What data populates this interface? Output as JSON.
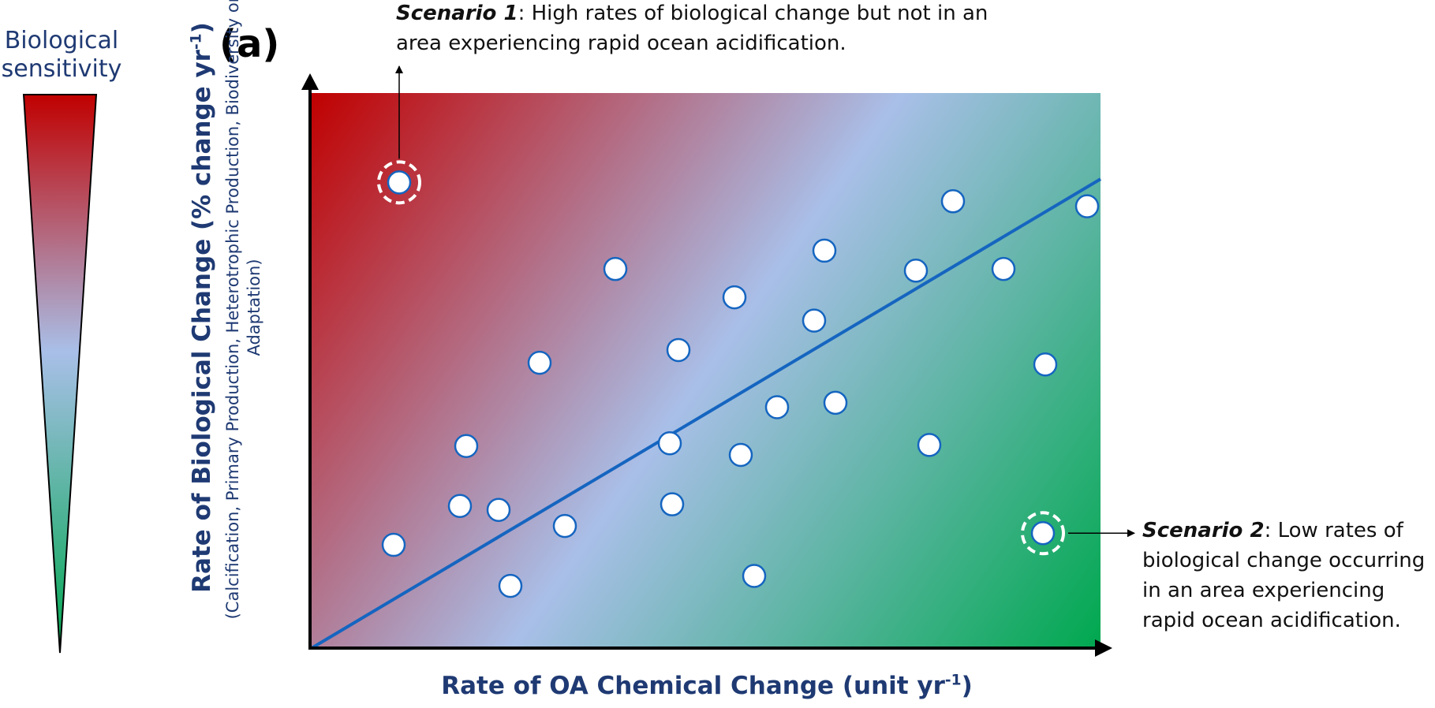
{
  "sensitivity": {
    "label_line1": "Biological",
    "label_line2": "sensitivity",
    "top_color": "#c00000",
    "mid_color": "#a9bfe8",
    "bottom_color": "#00a84f"
  },
  "panel_label": "(a)",
  "annotations": {
    "scenario1": {
      "title": "Scenario 1",
      "text": ": High rates of biological change but not in an area experiencing rapid ocean acidification."
    },
    "scenario2": {
      "title": "Scenario 2",
      "text": ": Low rates of biological change occurring in an area experiencing rapid ocean acidification."
    }
  },
  "chart_data": {
    "type": "scatter",
    "title": "",
    "xlabel_main": "Rate of OA Chemical Change (unit yr",
    "xlabel_sup": "-1",
    "xlabel_end": ")",
    "ylabel_main": "Rate of Biological Change (% change yr",
    "ylabel_sup": "-1",
    "ylabel_end": ")",
    "ylabel_sub": "(Calcification, Primary Production, Heterotrophic Production, Biodiversity or Adaptation)",
    "xlim": [
      0,
      100
    ],
    "ylim": [
      0,
      100
    ],
    "grid": false,
    "points": [
      {
        "x": 11.1,
        "y": 83.9,
        "highlight": "scenario1"
      },
      {
        "x": 92.7,
        "y": 20.7,
        "highlight": "scenario2"
      },
      {
        "x": 10.4,
        "y": 18.6
      },
      {
        "x": 18.8,
        "y": 25.6
      },
      {
        "x": 19.6,
        "y": 36.4
      },
      {
        "x": 23.7,
        "y": 24.9
      },
      {
        "x": 25.2,
        "y": 11.2
      },
      {
        "x": 28.9,
        "y": 51.4
      },
      {
        "x": 32.1,
        "y": 22.0
      },
      {
        "x": 38.5,
        "y": 68.3
      },
      {
        "x": 45.4,
        "y": 36.9
      },
      {
        "x": 45.7,
        "y": 25.9
      },
      {
        "x": 46.5,
        "y": 53.7
      },
      {
        "x": 53.6,
        "y": 63.2
      },
      {
        "x": 54.4,
        "y": 34.8
      },
      {
        "x": 56.1,
        "y": 13.0
      },
      {
        "x": 59.0,
        "y": 43.4
      },
      {
        "x": 63.7,
        "y": 59.0
      },
      {
        "x": 65.0,
        "y": 71.6
      },
      {
        "x": 66.4,
        "y": 44.2
      },
      {
        "x": 76.6,
        "y": 68.0
      },
      {
        "x": 78.3,
        "y": 36.6
      },
      {
        "x": 81.3,
        "y": 80.5
      },
      {
        "x": 87.7,
        "y": 68.3
      },
      {
        "x": 93.0,
        "y": 51.1
      },
      {
        "x": 98.3,
        "y": 79.6
      }
    ],
    "trend_line": {
      "x": [
        0,
        100
      ],
      "y": [
        0,
        84.5
      ]
    },
    "background_gradient": "top-left red to bottom-right green"
  }
}
